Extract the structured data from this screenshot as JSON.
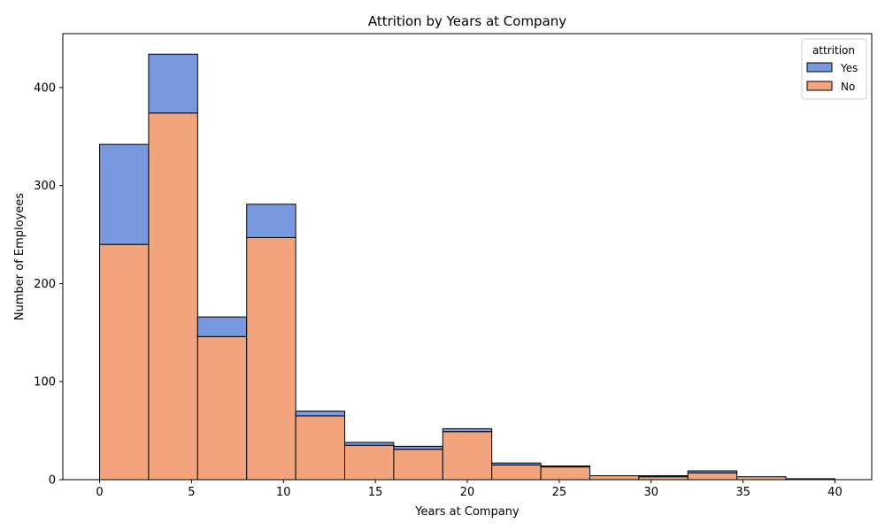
{
  "chart_data": {
    "type": "bar",
    "stacked": true,
    "title": "Attrition by Years at Company",
    "xlabel": "Years at Company",
    "ylabel": "Number of Employees",
    "xlim": [
      -2,
      42
    ],
    "ylim": [
      0,
      455
    ],
    "x_ticks": [
      "0",
      "5",
      "10",
      "15",
      "20",
      "25",
      "30",
      "35",
      "40"
    ],
    "y_ticks": [
      "0",
      "100",
      "200",
      "300",
      "400"
    ],
    "bin_edges": [
      0,
      2.667,
      5.333,
      8,
      10.667,
      13.333,
      16,
      18.667,
      21.333,
      24,
      26.667,
      29.333,
      32,
      34.667,
      37.333,
      40
    ],
    "legend": {
      "title": "attrition",
      "placement": "top-right"
    },
    "series": [
      {
        "name": "No",
        "color": "#F2A57C",
        "values": [
          240,
          374,
          146,
          247,
          65,
          35,
          31,
          49,
          15,
          13,
          4,
          3,
          7,
          3,
          1
        ]
      },
      {
        "name": "Yes",
        "color": "#7899DF",
        "values": [
          102,
          60,
          20,
          34,
          5,
          3,
          3,
          3,
          2,
          1,
          0,
          1,
          2,
          0,
          0
        ]
      }
    ],
    "legend_order": [
      "Yes",
      "No"
    ],
    "grid": false
  }
}
